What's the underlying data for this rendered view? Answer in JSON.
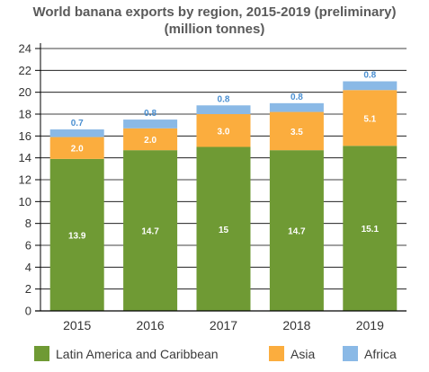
{
  "title": "World banana exports by region, 2015-2019 (preliminary)",
  "subtitle": "(million tonnes)",
  "colors": {
    "latam": "#6f9a34",
    "asia": "#fbad3e",
    "africa": "#8ab9e6",
    "axis": "#000000",
    "grid": "#000000",
    "text": "#333333"
  },
  "chart_data": {
    "type": "bar",
    "stacked": true,
    "title": "World banana exports by region, 2015-2019 (preliminary)",
    "subtitle": "(million tonnes)",
    "categories": [
      "2015",
      "2016",
      "2017",
      "2018",
      "2019"
    ],
    "series": [
      {
        "name": "Latin America and Caribbean",
        "values": [
          13.9,
          14.7,
          15,
          14.7,
          15.1
        ],
        "labels": [
          "13.9",
          "14.7",
          "15",
          "14.7",
          "15.1"
        ]
      },
      {
        "name": "Asia",
        "values": [
          2.0,
          2.0,
          3.0,
          3.5,
          5.1
        ],
        "labels": [
          "2.0",
          "2.0",
          "3.0",
          "3.5",
          "5.1"
        ]
      },
      {
        "name": "Africa",
        "values": [
          0.7,
          0.8,
          0.8,
          0.8,
          0.8
        ],
        "labels": [
          "0.7",
          "0.8",
          "0.8",
          "0.8",
          "0.8"
        ]
      }
    ],
    "yticks": [
      "0",
      "2",
      "4",
      "6",
      "8",
      "10",
      "12",
      "14",
      "16",
      "18",
      "20",
      "22",
      "24"
    ],
    "ylim": [
      0,
      24
    ],
    "grid": true,
    "legend_position": "bottom",
    "xlabel": "",
    "ylabel": ""
  }
}
